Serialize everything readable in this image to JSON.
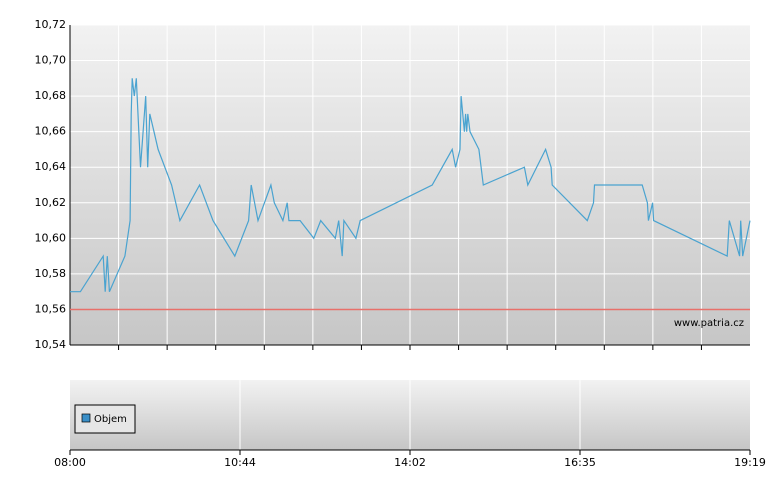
{
  "chart_data": {
    "type": "line",
    "watermark": "www.patria.cz",
    "xticks": [
      "08:00",
      "10:44",
      "14:02",
      "16:35",
      "19:19"
    ],
    "ylim": [
      10.54,
      10.72
    ],
    "yticks": [
      {
        "value": 10.54,
        "label": "10,54"
      },
      {
        "value": 10.56,
        "label": "10,56"
      },
      {
        "value": 10.58,
        "label": "10,58"
      },
      {
        "value": 10.6,
        "label": "10,60"
      },
      {
        "value": 10.62,
        "label": "10,62"
      },
      {
        "value": 10.64,
        "label": "10,64"
      },
      {
        "value": 10.66,
        "label": "10,66"
      },
      {
        "value": 10.68,
        "label": "10,68"
      },
      {
        "value": 10.7,
        "label": "10,70"
      },
      {
        "value": 10.72,
        "label": "10,72"
      }
    ],
    "grid": true,
    "reference_line": {
      "value": 10.56,
      "color": "#e8706a"
    },
    "series": [
      {
        "color": "#4aa3d0",
        "x": [
          "08:00",
          "08:10",
          "08:32",
          "08:34",
          "08:36",
          "08:38",
          "08:53",
          "08:58",
          "08:59",
          "09:00",
          "09:02",
          "09:04",
          "09:08",
          "09:13",
          "09:15",
          "09:17",
          "09:21",
          "09:25",
          "09:38",
          "09:46",
          "10:05",
          "10:18",
          "10:39",
          "10:54",
          "10:57",
          "11:05",
          "11:20",
          "11:24",
          "11:34",
          "11:39",
          "11:41",
          "11:54",
          "12:10",
          "12:18",
          "12:35",
          "12:39",
          "12:43",
          "12:45",
          "12:59",
          "13:04",
          "14:22",
          "14:40",
          "14:43",
          "14:47",
          "14:48",
          "14:51",
          "14:52",
          "14:53",
          "14:54",
          "14:56",
          "15:04",
          "15:08",
          "15:45",
          "15:48",
          "16:04",
          "16:09",
          "16:10",
          "16:42",
          "16:48",
          "16:49",
          "17:35",
          "17:40",
          "17:41",
          "17:45",
          "17:46",
          "18:57",
          "18:59",
          "19:09",
          "19:10",
          "19:12",
          "19:19"
        ],
        "values": [
          10.57,
          10.57,
          10.59,
          10.57,
          10.59,
          10.57,
          10.59,
          10.61,
          10.67,
          10.69,
          10.68,
          10.69,
          10.64,
          10.68,
          10.64,
          10.67,
          10.66,
          10.65,
          10.63,
          10.61,
          10.63,
          10.61,
          10.59,
          10.61,
          10.63,
          10.61,
          10.63,
          10.62,
          10.61,
          10.62,
          10.61,
          10.61,
          10.6,
          10.61,
          10.6,
          10.61,
          10.59,
          10.61,
          10.6,
          10.61,
          10.63,
          10.65,
          10.64,
          10.65,
          10.68,
          10.66,
          10.67,
          10.66,
          10.67,
          10.66,
          10.65,
          10.63,
          10.64,
          10.63,
          10.65,
          10.64,
          10.63,
          10.61,
          10.62,
          10.63,
          10.63,
          10.62,
          10.61,
          10.62,
          10.61,
          10.59,
          10.61,
          10.59,
          10.61,
          10.59,
          10.61
        ]
      }
    ],
    "volume_panel": {
      "legend": "Objem",
      "legend_color": "#3a8fc8"
    }
  }
}
